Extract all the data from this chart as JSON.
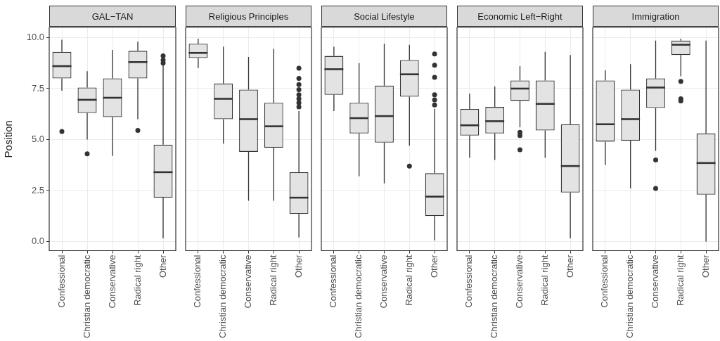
{
  "chart_data": [
    {
      "type": "box",
      "title": "GAL−TAN",
      "ylabel": "Position",
      "categories": [
        "Confessional",
        "Christian democratic",
        "Conservative",
        "Radical right",
        "Other"
      ],
      "boxes": [
        {
          "low": 7.4,
          "q1": 8.0,
          "median": 8.6,
          "q3": 9.3,
          "high": 9.9,
          "outliers": [
            5.4
          ]
        },
        {
          "low": 5.0,
          "q1": 6.3,
          "median": 6.95,
          "q3": 7.55,
          "high": 8.35,
          "outliers": [
            4.3
          ]
        },
        {
          "low": 4.2,
          "q1": 6.1,
          "median": 7.05,
          "q3": 8.0,
          "high": 9.4
        },
        {
          "low": 6.0,
          "q1": 8.0,
          "median": 8.8,
          "q3": 9.35,
          "high": 9.8,
          "outliers": [
            5.45
          ]
        },
        {
          "low": 0.15,
          "q1": 2.15,
          "median": 3.4,
          "q3": 4.75,
          "high": 8.7,
          "outliers": [
            9.1,
            8.9,
            8.75
          ]
        }
      ],
      "ylim": [
        -0.45,
        10.5
      ],
      "yticks": [
        {
          "value": 0,
          "label": "0.0"
        },
        {
          "value": 2.5,
          "label": "2.5"
        },
        {
          "value": 5,
          "label": "5.0"
        },
        {
          "value": 7.5,
          "label": "7.5"
        },
        {
          "value": 10,
          "label": "10.0"
        }
      ],
      "grid": true
    },
    {
      "type": "box",
      "title": "Religious Principles",
      "categories": [
        "Confessional",
        "Christian democratic",
        "Conservative",
        "Radical right",
        "Other"
      ],
      "boxes": [
        {
          "low": 8.5,
          "q1": 9.0,
          "median": 9.25,
          "q3": 9.7,
          "high": 9.95
        },
        {
          "low": 4.8,
          "q1": 6.0,
          "median": 7.0,
          "q3": 7.75,
          "high": 9.55
        },
        {
          "low": 2.0,
          "q1": 4.4,
          "median": 6.0,
          "q3": 7.45,
          "high": 9.05
        },
        {
          "low": 2.0,
          "q1": 4.6,
          "median": 5.65,
          "q3": 6.8,
          "high": 9.45
        },
        {
          "low": 0.2,
          "q1": 1.35,
          "median": 2.15,
          "q3": 3.4,
          "high": 6.4,
          "outliers": [
            8.5,
            8.0,
            7.7,
            7.45,
            7.2,
            7.0,
            6.8,
            6.6
          ]
        }
      ],
      "ylim": [
        -0.45,
        10.5
      ],
      "yticks": [
        0,
        2.5,
        5,
        7.5,
        10
      ],
      "grid": true,
      "tick_labels": "x"
    },
    {
      "type": "box",
      "title": "Social Lifestyle",
      "categories": [
        "Confessional",
        "Christian democratic",
        "Conservative",
        "Radical right",
        "Other"
      ],
      "boxes": [
        {
          "low": 6.4,
          "q1": 7.2,
          "median": 8.45,
          "q3": 9.1,
          "high": 9.55
        },
        {
          "low": 3.2,
          "q1": 5.3,
          "median": 6.05,
          "q3": 6.8,
          "high": 8.75
        },
        {
          "low": 2.85,
          "q1": 4.85,
          "median": 6.15,
          "q3": 7.65,
          "high": 9.7
        },
        {
          "low": 4.7,
          "q1": 7.1,
          "median": 8.2,
          "q3": 8.9,
          "high": 9.65,
          "outliers": [
            3.7
          ]
        },
        {
          "low": 0.05,
          "q1": 1.25,
          "median": 2.2,
          "q3": 3.35,
          "high": 6.5,
          "outliers": [
            9.2,
            8.65,
            8.05,
            7.2,
            6.95,
            6.7
          ]
        }
      ],
      "ylim": [
        -0.45,
        10.5
      ],
      "yticks": [
        0,
        2.5,
        5,
        7.5,
        10
      ],
      "grid": true,
      "tick_labels": "x"
    },
    {
      "type": "box",
      "title": "Economic Left−Right",
      "categories": [
        "Confessional",
        "Christian democratic",
        "Conservative",
        "Radical right",
        "Other"
      ],
      "boxes": [
        {
          "low": 4.1,
          "q1": 5.2,
          "median": 5.7,
          "q3": 6.5,
          "high": 7.25
        },
        {
          "low": 4.0,
          "q1": 5.3,
          "median": 5.9,
          "q3": 6.6,
          "high": 7.6
        },
        {
          "low": 5.6,
          "q1": 6.9,
          "median": 7.5,
          "q3": 7.9,
          "high": 8.6,
          "outliers": [
            5.35,
            5.2,
            4.5
          ]
        },
        {
          "low": 4.1,
          "q1": 5.45,
          "median": 6.75,
          "q3": 7.9,
          "high": 9.3
        },
        {
          "low": 0.15,
          "q1": 2.4,
          "median": 3.7,
          "q3": 5.75,
          "high": 9.15
        }
      ],
      "ylim": [
        -0.45,
        10.5
      ],
      "yticks": [
        0,
        2.5,
        5,
        7.5,
        10
      ],
      "grid": true,
      "tick_labels": "x"
    },
    {
      "type": "box",
      "title": "Immigration",
      "categories": [
        "Confessional",
        "Christian democratic",
        "Conservative",
        "Radical right",
        "Other"
      ],
      "boxes": [
        {
          "low": 3.75,
          "q1": 4.9,
          "median": 5.75,
          "q3": 7.9,
          "high": 8.4
        },
        {
          "low": 2.6,
          "q1": 4.95,
          "median": 6.0,
          "q3": 7.45,
          "high": 8.7
        },
        {
          "low": 4.45,
          "q1": 6.55,
          "median": 7.55,
          "q3": 8.0,
          "high": 9.85,
          "outliers": [
            4.0,
            2.6
          ]
        },
        {
          "low": 8.1,
          "q1": 9.15,
          "median": 9.65,
          "q3": 9.85,
          "high": 9.95,
          "outliers": [
            7.85,
            7.0,
            6.9
          ]
        },
        {
          "low": 0.0,
          "q1": 2.3,
          "median": 3.85,
          "q3": 5.3,
          "high": 9.85
        }
      ],
      "ylim": [
        -0.45,
        10.5
      ],
      "yticks": [
        0,
        2.5,
        5,
        7.5,
        10
      ],
      "grid": true,
      "tick_labels": "x"
    }
  ]
}
